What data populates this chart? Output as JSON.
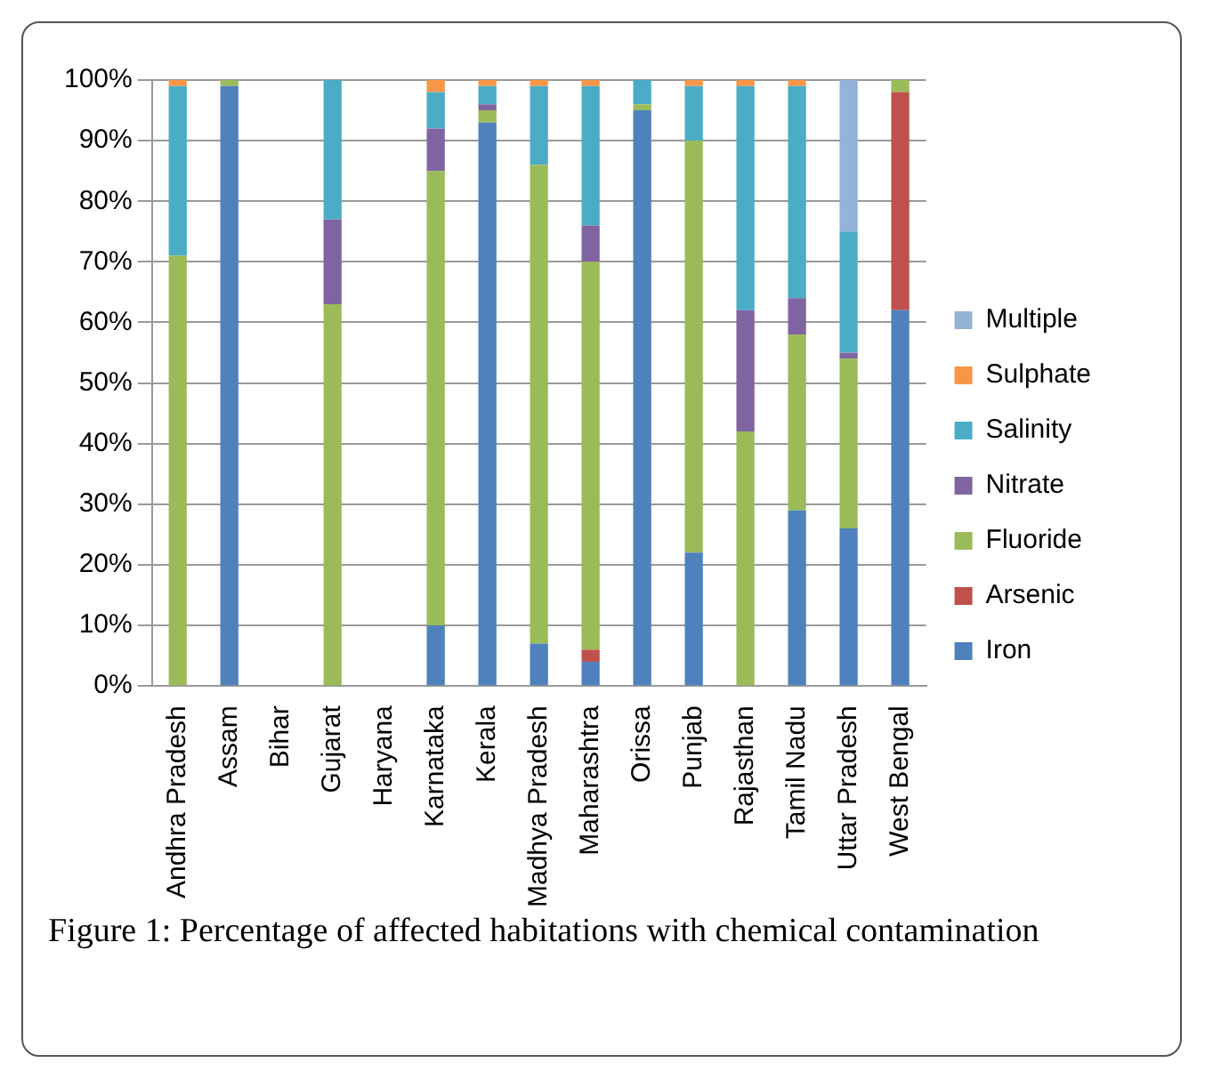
{
  "chart_data": {
    "type": "bar",
    "stacked": true,
    "categories": [
      "Andhra Pradesh",
      "Assam",
      "Bihar",
      "Gujarat",
      "Haryana",
      "Karnataka",
      "Kerala",
      "Madhya Pradesh",
      "Maharashtra",
      "Orissa",
      "Punjab",
      "Rajasthan",
      "Tamil Nadu",
      "Uttar Pradesh",
      "West Bengal"
    ],
    "series": [
      {
        "name": "Iron",
        "color": "#4f81bd",
        "values": [
          0,
          99,
          0,
          0,
          0,
          10,
          93,
          7,
          4,
          95,
          22,
          0,
          29,
          26,
          62
        ]
      },
      {
        "name": "Arsenic",
        "color": "#c0504d",
        "values": [
          0,
          0,
          0,
          0,
          0,
          0,
          0,
          0,
          2,
          0,
          0,
          0,
          0,
          0,
          36
        ]
      },
      {
        "name": "Fluoride",
        "color": "#9bbb59",
        "values": [
          71,
          1,
          0,
          63,
          0,
          75,
          2,
          79,
          64,
          1,
          68,
          42,
          29,
          28,
          2
        ]
      },
      {
        "name": "Nitrate",
        "color": "#8064a2",
        "values": [
          0,
          0,
          0,
          14,
          0,
          7,
          1,
          0,
          6,
          0,
          0,
          20,
          6,
          1,
          0
        ]
      },
      {
        "name": "Salinity",
        "color": "#4bacc6",
        "values": [
          28,
          0,
          0,
          23,
          0,
          6,
          3,
          13,
          23,
          4,
          9,
          37,
          35,
          20,
          0
        ]
      },
      {
        "name": "Sulphate",
        "color": "#f79646",
        "values": [
          1,
          0,
          0,
          0,
          0,
          2,
          1,
          1,
          1,
          0,
          1,
          1,
          1,
          0,
          0
        ]
      },
      {
        "name": "Multiple",
        "color": "#95b3d7",
        "values": [
          0,
          0,
          0,
          0,
          0,
          0,
          0,
          0,
          0,
          0,
          0,
          0,
          0,
          25,
          0
        ]
      }
    ],
    "ylim": [
      0,
      100
    ],
    "yticks": [
      {
        "value": 0,
        "label": "0%"
      },
      {
        "value": 10,
        "label": "10%"
      },
      {
        "value": 20,
        "label": "20%"
      },
      {
        "value": 30,
        "label": "30%"
      },
      {
        "value": 40,
        "label": "40%"
      },
      {
        "value": 50,
        "label": "50%"
      },
      {
        "value": 60,
        "label": "60%"
      },
      {
        "value": 70,
        "label": "70%"
      },
      {
        "value": 80,
        "label": "80%"
      },
      {
        "value": 90,
        "label": "90%"
      },
      {
        "value": 100,
        "label": "100%"
      }
    ],
    "grid": "y",
    "legend": "right",
    "annotations": [
      "Figure 1: Percentage of affected habitations with chemical contamination"
    ]
  }
}
